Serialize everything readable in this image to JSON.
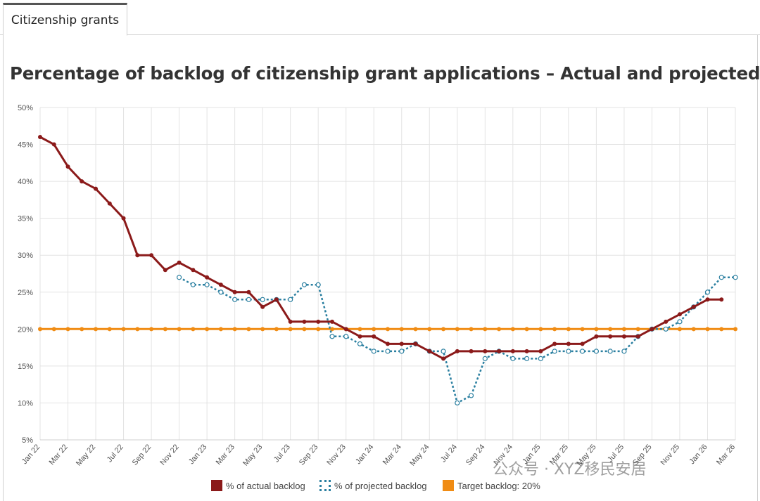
{
  "tab": {
    "label": "Citizenship grants"
  },
  "chart_data": {
    "type": "line",
    "title": "Percentage of backlog of citizenship grant applications – Actual and projected",
    "xlabel": "",
    "ylabel": "",
    "ylim": [
      5,
      50
    ],
    "y_ticks": [
      "5%",
      "10%",
      "15%",
      "20%",
      "25%",
      "30%",
      "35%",
      "40%",
      "45%",
      "50%"
    ],
    "x": [
      "Jan 22",
      "Feb 22",
      "Mar 22",
      "Apr 22",
      "May 22",
      "Jun 22",
      "Jul 22",
      "Aug 22",
      "Sep 22",
      "Oct 22",
      "Nov 22",
      "Dec 22",
      "Jan 23",
      "Feb 23",
      "Mar 23",
      "Apr 23",
      "May 23",
      "Jun 23",
      "Jul 23",
      "Aug 23",
      "Sep 23",
      "Oct 23",
      "Nov 23",
      "Dec 23",
      "Jan 24",
      "Feb 24",
      "Mar 24",
      "Apr 24",
      "May 24",
      "Jun 24",
      "Jul 24",
      "Aug 24",
      "Sep 24",
      "Oct 24",
      "Nov 24",
      "Dec 24",
      "Jan 25",
      "Feb 25",
      "Mar 25",
      "Apr 25",
      "May 25",
      "Jun 25",
      "Jul 25",
      "Aug 25",
      "Sep 25",
      "Oct 25",
      "Nov 25",
      "Dec 25",
      "Jan 26",
      "Feb 26",
      "Mar 26"
    ],
    "x_tick_labels": [
      "Jan 22",
      "Mar 22",
      "May 22",
      "Jul 22",
      "Sep 22",
      "Nov 22",
      "Jan 23",
      "Mar 23",
      "May 23",
      "Jul 23",
      "Sep 23",
      "Nov 23",
      "Jan 24",
      "Mar 24",
      "May 24",
      "Jul 24",
      "Sep 24",
      "Nov 24",
      "Jan 25",
      "Mar 25",
      "May 25",
      "Jul 25",
      "Sep 25",
      "Nov 25",
      "Jan 26",
      "Mar 26"
    ],
    "series": [
      {
        "name": "% of actual backlog",
        "color": "#8b1a1a",
        "style": "solid",
        "values": [
          46,
          45,
          42,
          40,
          39,
          37,
          35,
          30,
          30,
          28,
          29,
          28,
          27,
          26,
          25,
          25,
          23,
          24,
          21,
          21,
          21,
          21,
          20,
          19,
          19,
          18,
          18,
          18,
          17,
          16,
          17,
          17,
          17,
          17,
          17,
          17,
          17,
          18,
          18,
          18,
          19,
          19,
          19,
          19,
          20,
          21,
          22,
          23,
          24,
          24,
          null
        ]
      },
      {
        "name": "% of projected backlog",
        "color": "#2a7fa0",
        "style": "dotted",
        "values": [
          null,
          null,
          null,
          null,
          null,
          null,
          null,
          null,
          null,
          null,
          27,
          26,
          26,
          25,
          24,
          24,
          24,
          24,
          24,
          26,
          26,
          19,
          19,
          18,
          17,
          17,
          17,
          18,
          17,
          17,
          10,
          11,
          16,
          17,
          16,
          16,
          16,
          17,
          17,
          17,
          17,
          17,
          17,
          19,
          20,
          20,
          21,
          23,
          25,
          27,
          27
        ]
      },
      {
        "name": "Target backlog: 20%",
        "color": "#f08c14",
        "style": "solid",
        "values": [
          20,
          20,
          20,
          20,
          20,
          20,
          20,
          20,
          20,
          20,
          20,
          20,
          20,
          20,
          20,
          20,
          20,
          20,
          20,
          20,
          20,
          20,
          20,
          20,
          20,
          20,
          20,
          20,
          20,
          20,
          20,
          20,
          20,
          20,
          20,
          20,
          20,
          20,
          20,
          20,
          20,
          20,
          20,
          20,
          20,
          20,
          20,
          20,
          20,
          20,
          20
        ]
      }
    ],
    "legend_placement": "bottom",
    "grid": true
  },
  "legend": {
    "actual": "% of actual backlog",
    "projected": "% of projected backlog",
    "target": "Target backlog: 20%"
  },
  "watermark": "公众号 · XYZ移民安居"
}
